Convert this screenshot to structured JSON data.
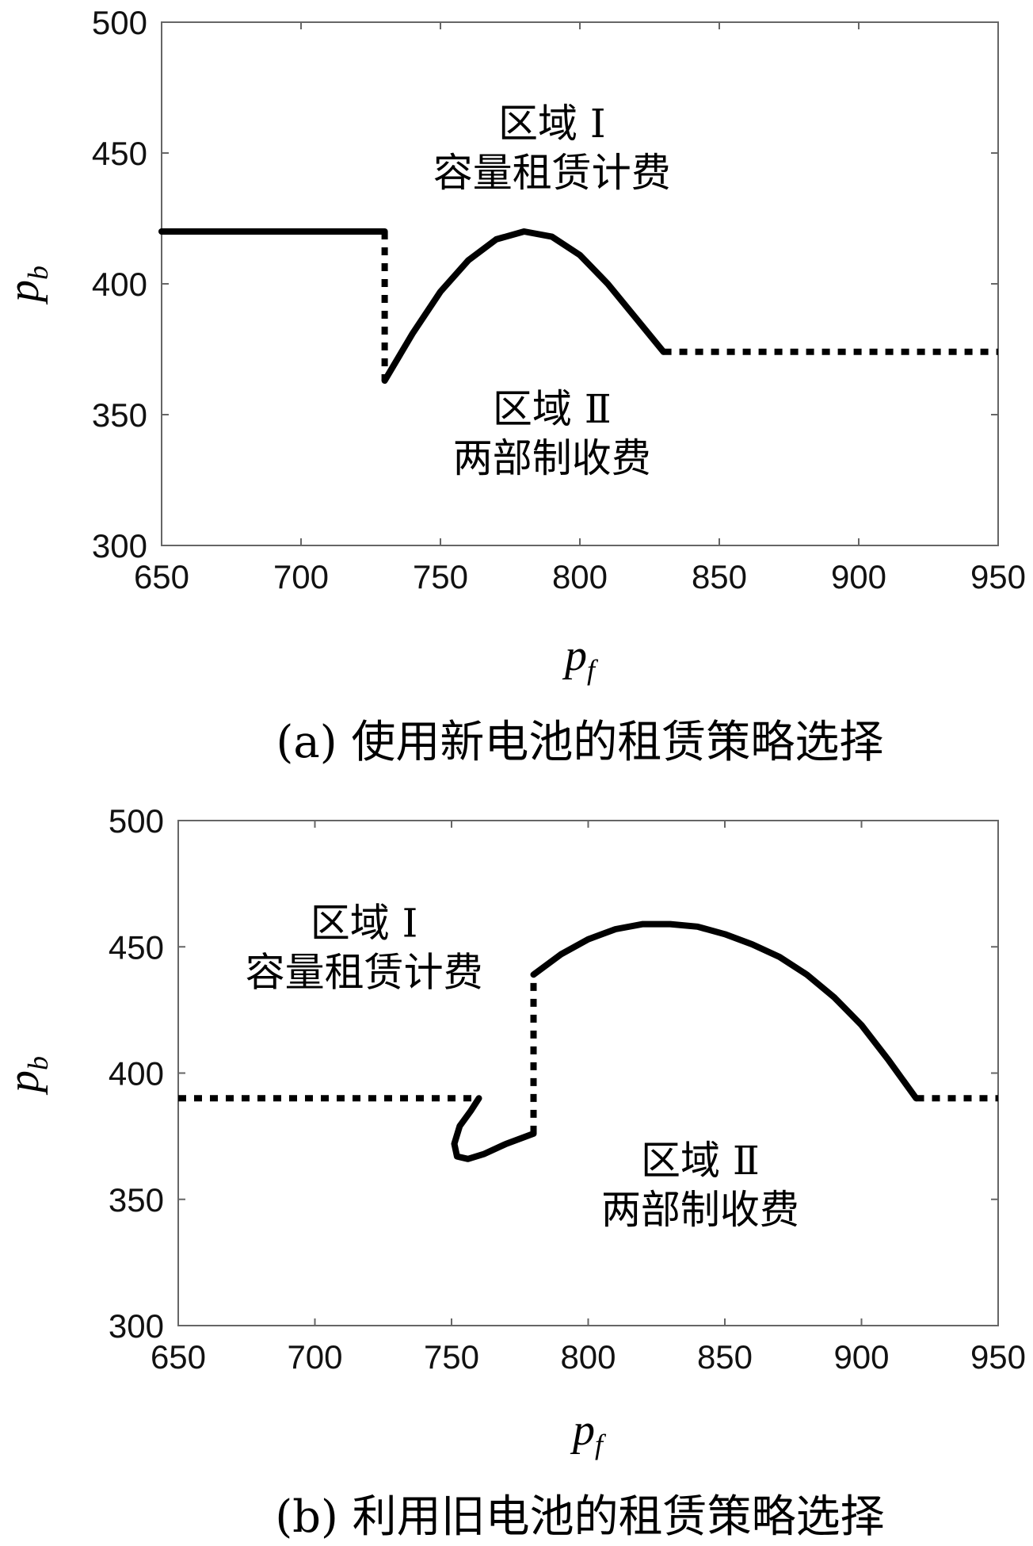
{
  "chart_data": [
    {
      "type": "line",
      "caption": "(a) 使用新电池的租赁策略选择",
      "xlabel": {
        "main": "p",
        "sub": "f"
      },
      "ylabel": {
        "main": "p",
        "sub": "b"
      },
      "xlim": [
        650,
        950
      ],
      "ylim": [
        300,
        500
      ],
      "xticks": [
        "650",
        "700",
        "750",
        "800",
        "850",
        "900",
        "950"
      ],
      "yticks": [
        "300",
        "350",
        "400",
        "450",
        "500"
      ],
      "grid": false,
      "annotations": [
        {
          "line1": "区域 Ⅰ",
          "line2": "容量租赁计费",
          "x": 790,
          "y": 456
        },
        {
          "line1": "区域 Ⅱ",
          "line2": "两部制收费",
          "x": 790,
          "y": 347
        }
      ],
      "series": [
        {
          "style": "solid",
          "x": [
            650,
            730
          ],
          "y": [
            420,
            420
          ]
        },
        {
          "style": "dotted",
          "x": [
            730,
            730
          ],
          "y": [
            420,
            363
          ]
        },
        {
          "style": "solid",
          "x": [
            730,
            740,
            750,
            760,
            770,
            780,
            790,
            800,
            810,
            820,
            830
          ],
          "y": [
            363,
            381,
            397,
            409,
            417,
            420,
            418,
            411,
            400,
            387,
            374
          ]
        },
        {
          "style": "dotted",
          "x": [
            830,
            950
          ],
          "y": [
            374,
            374
          ]
        }
      ]
    },
    {
      "type": "line",
      "caption": "(b) 利用旧电池的租赁策略选择",
      "xlabel": {
        "main": "p",
        "sub": "f"
      },
      "ylabel": {
        "main": "p",
        "sub": "b"
      },
      "xlim": [
        650,
        950
      ],
      "ylim": [
        300,
        500
      ],
      "xticks": [
        "650",
        "700",
        "750",
        "800",
        "850",
        "900",
        "950"
      ],
      "yticks": [
        "300",
        "350",
        "400",
        "450",
        "500"
      ],
      "grid": false,
      "annotations": [
        {
          "line1": "区域 Ⅰ",
          "line2": "容量租赁计费",
          "x": 718,
          "y": 454
        },
        {
          "line1": "区域 Ⅱ",
          "line2": "两部制收费",
          "x": 841,
          "y": 360
        }
      ],
      "series": [
        {
          "style": "dotted",
          "x": [
            650,
            760
          ],
          "y": [
            390,
            390
          ]
        },
        {
          "style": "solid",
          "x": [
            760,
            757,
            753,
            751,
            752,
            756,
            762,
            770,
            780
          ],
          "y": [
            390,
            385,
            379,
            372,
            367,
            366,
            368,
            372,
            376
          ]
        },
        {
          "style": "dotted",
          "x": [
            780,
            780
          ],
          "y": [
            376,
            439
          ]
        },
        {
          "style": "solid",
          "x": [
            780,
            790,
            800,
            810,
            820,
            830,
            840,
            850,
            860,
            870,
            880,
            890,
            900,
            910,
            920
          ],
          "y": [
            439,
            447,
            453,
            457,
            459,
            459,
            458,
            455,
            451,
            446,
            439,
            430,
            419,
            405,
            390
          ]
        },
        {
          "style": "dotted",
          "x": [
            920,
            950
          ],
          "y": [
            390,
            390
          ]
        }
      ]
    }
  ]
}
